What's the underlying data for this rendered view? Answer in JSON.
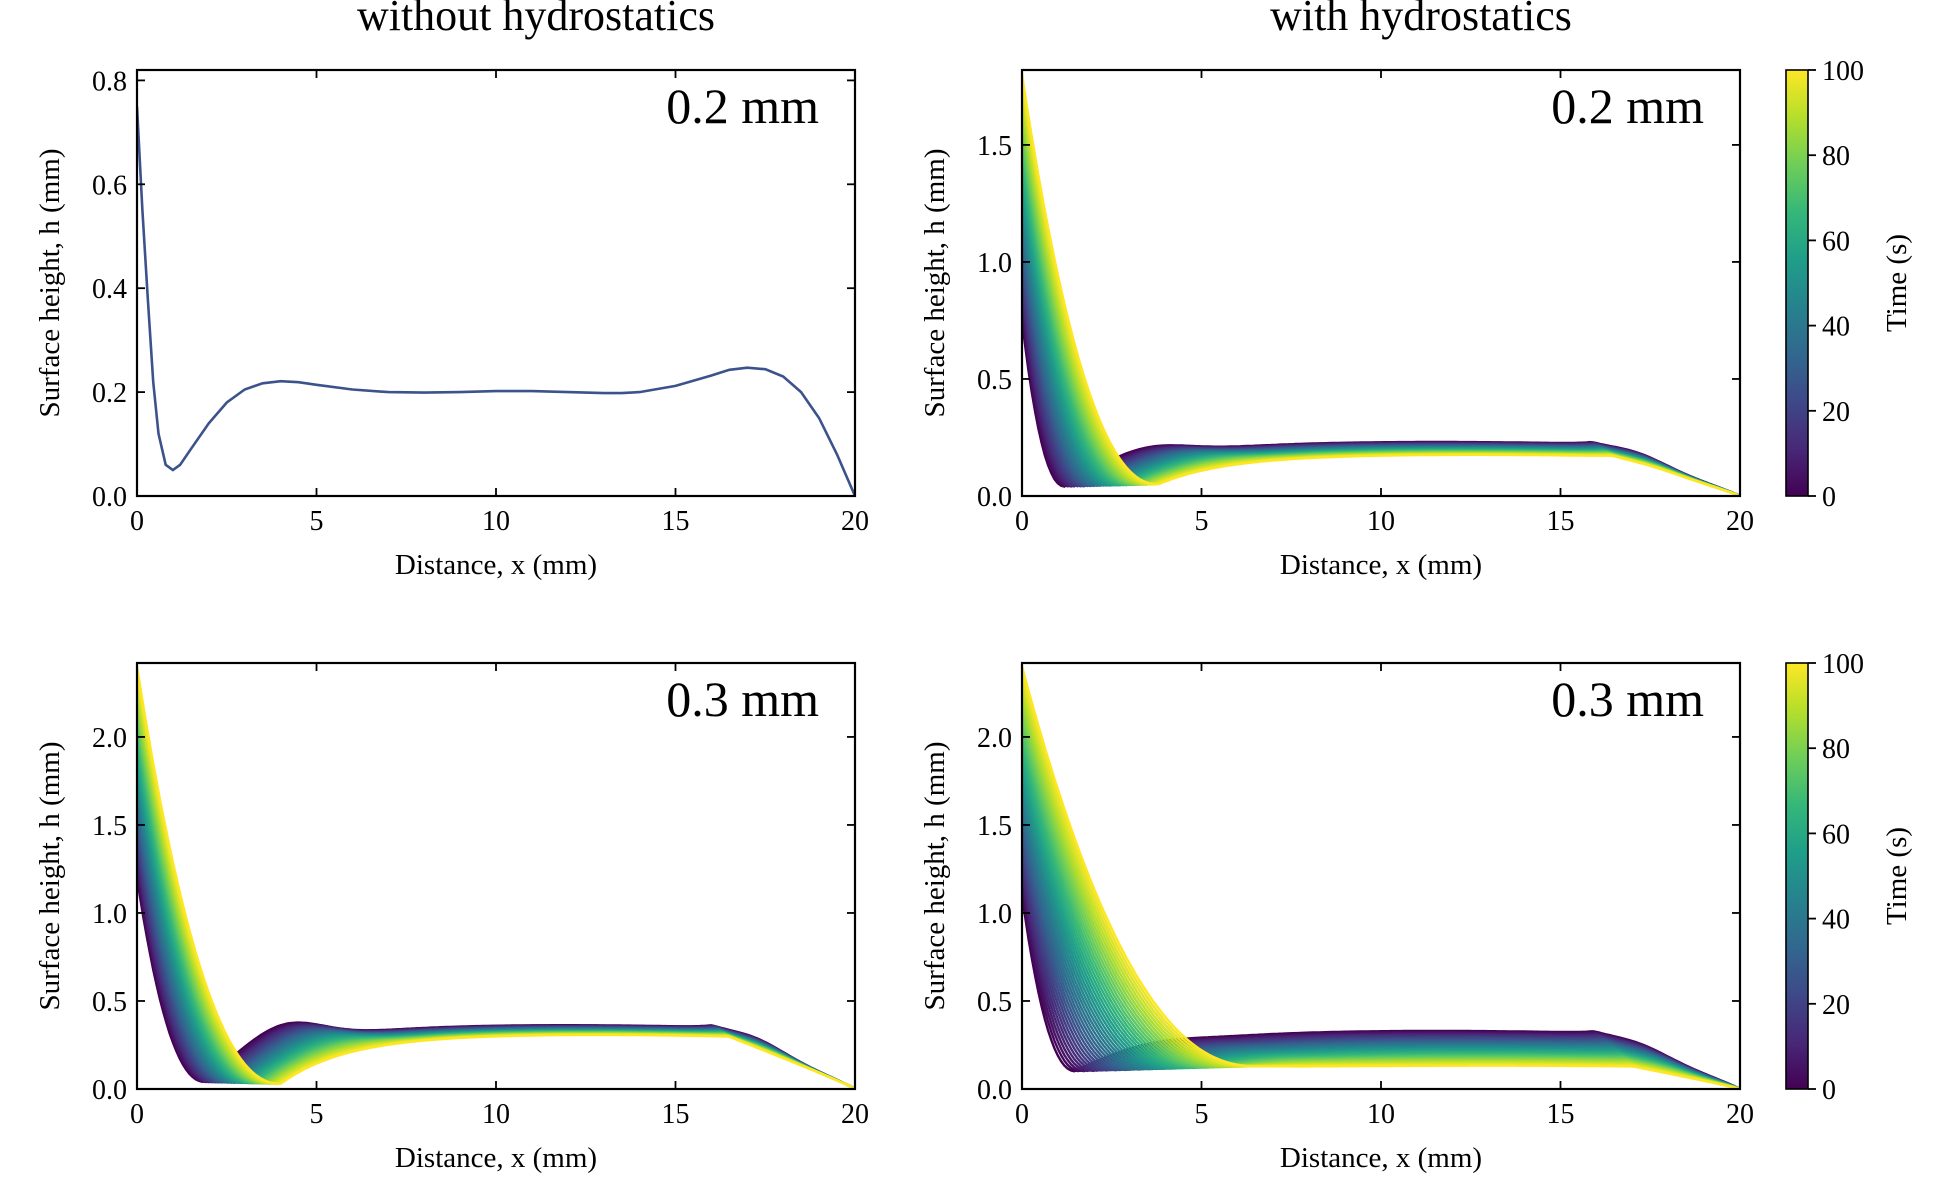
{
  "column_titles": [
    "without hydrostatics",
    "with hydrostatics"
  ],
  "colorbar": {
    "label": "Time (s)",
    "ticks": [
      "0",
      "20",
      "40",
      "60",
      "80",
      "100"
    ],
    "colormap": [
      "#440154",
      "#482878",
      "#3e4989",
      "#31688e",
      "#26828e",
      "#1f9e89",
      "#35b779",
      "#6ece58",
      "#b5de2b",
      "#fde725"
    ]
  },
  "line_color_single": "#3b528b",
  "chart_data": [
    {
      "type": "line",
      "panel": "top-left",
      "annotation": "0.2 mm",
      "xlabel": "Distance, x (mm)",
      "ylabel": "Surface height, h (mm)",
      "xlim": [
        0,
        20
      ],
      "ylim": [
        0,
        0.82
      ],
      "xticks": [
        0,
        5,
        10,
        15,
        20
      ],
      "yticks": [
        "0.0",
        "0.2",
        "0.4",
        "0.6",
        "0.8"
      ],
      "ytick_values": [
        0,
        0.2,
        0.4,
        0.6,
        0.8
      ],
      "series": [
        {
          "x": [
            0,
            0.15,
            0.3,
            0.45,
            0.6,
            0.8,
            1.0,
            1.2,
            1.5,
            2.0,
            2.5,
            3.0,
            3.5,
            4.0,
            4.5,
            5.0,
            6.0,
            7.0,
            8.0,
            9.0,
            10.0,
            11.0,
            12.0,
            13.0,
            13.5,
            14.0,
            15.0,
            16.0,
            16.5,
            17.0,
            17.5,
            18.0,
            18.5,
            19.0,
            19.5,
            20.0
          ],
          "y": [
            0.75,
            0.55,
            0.38,
            0.22,
            0.12,
            0.06,
            0.05,
            0.06,
            0.09,
            0.14,
            0.18,
            0.205,
            0.217,
            0.221,
            0.219,
            0.214,
            0.205,
            0.2,
            0.199,
            0.2,
            0.202,
            0.202,
            0.2,
            0.198,
            0.198,
            0.2,
            0.212,
            0.232,
            0.243,
            0.247,
            0.244,
            0.23,
            0.2,
            0.15,
            0.08,
            0.0
          ]
        }
      ]
    },
    {
      "type": "line",
      "panel": "top-right",
      "annotation": "0.2 mm",
      "xlabel": "Distance, x (mm)",
      "ylabel": "Surface height, h (mm)",
      "xlim": [
        0,
        20
      ],
      "ylim": [
        0,
        1.82
      ],
      "xticks": [
        0,
        5,
        10,
        15,
        20
      ],
      "yticks": [
        "0.0",
        "0.5",
        "1.0",
        "1.5"
      ],
      "ytick_values": [
        0,
        0.5,
        1.0,
        1.5
      ],
      "time_range": [
        0,
        100
      ],
      "curve_family": {
        "count": 40,
        "h0_start": 0.75,
        "h0_end": 1.8,
        "xmin_start": 1.2,
        "xmin_end": 3.8,
        "hmin_start": 0.04,
        "hmin_end": 0.05,
        "plateau_start": 0.21,
        "plateau_end": 0.16,
        "bump_start": 0.045,
        "bump_end": 0.0,
        "edge_peak_start": 0.04,
        "edge_peak_end": 0.01
      }
    },
    {
      "type": "line",
      "panel": "bottom-left",
      "annotation": "0.3 mm",
      "xlabel": "Distance, x (mm)",
      "ylabel": "Surface height, h (mm)",
      "xlim": [
        0,
        20
      ],
      "ylim": [
        0,
        2.42
      ],
      "xticks": [
        0,
        5,
        10,
        15,
        20
      ],
      "yticks": [
        "0.0",
        "0.5",
        "1.0",
        "1.5",
        "2.0"
      ],
      "ytick_values": [
        0,
        0.5,
        1.0,
        1.5,
        2.0
      ],
      "time_range": [
        0,
        100
      ],
      "curve_family": {
        "count": 40,
        "h0_start": 1.2,
        "h0_end": 2.4,
        "xmin_start": 1.9,
        "xmin_end": 4.0,
        "hmin_start": 0.04,
        "hmin_end": 0.03,
        "plateau_start": 0.33,
        "plateau_end": 0.28,
        "bump_start": 0.12,
        "bump_end": 0.0,
        "edge_peak_start": 0.06,
        "edge_peak_end": 0.0
      }
    },
    {
      "type": "line",
      "panel": "bottom-right",
      "annotation": "0.3 mm",
      "xlabel": "Distance, x (mm)",
      "ylabel": "Surface height, h (mm)",
      "xlim": [
        0,
        20
      ],
      "ylim": [
        0,
        2.42
      ],
      "xticks": [
        0,
        5,
        10,
        15,
        20
      ],
      "yticks": [
        "0.0",
        "0.5",
        "1.0",
        "1.5",
        "2.0"
      ],
      "ytick_values": [
        0,
        0.5,
        1.0,
        1.5,
        2.0
      ],
      "time_range": [
        0,
        100
      ],
      "curve_family": {
        "count": 40,
        "h0_start": 1.1,
        "h0_end": 2.4,
        "xmin_start": 1.5,
        "xmin_end": 6.5,
        "hmin_start": 0.1,
        "hmin_end": 0.13,
        "plateau_start": 0.3,
        "plateau_end": 0.12,
        "bump_start": 0.02,
        "bump_end": 0.0,
        "edge_peak_start": 0.05,
        "edge_peak_end": 0.0
      }
    }
  ]
}
